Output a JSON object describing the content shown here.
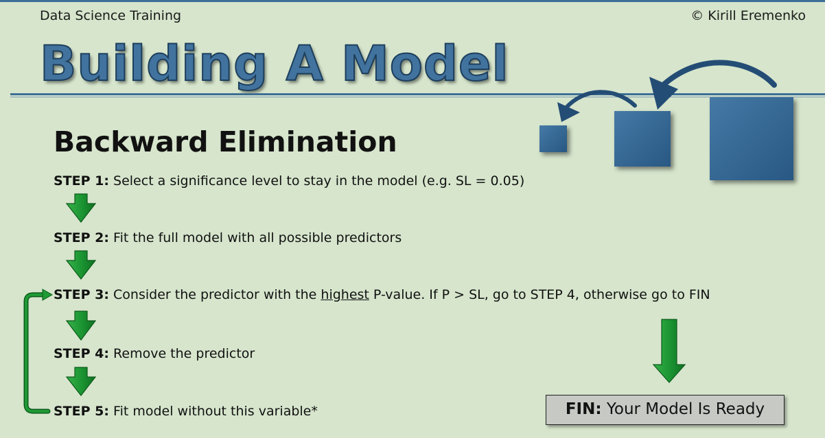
{
  "header": {
    "left_text": "Data Science Training",
    "right_text": "© Kirill Eremenko"
  },
  "title": "Building A Model",
  "section_title": "Backward Elimination",
  "steps": [
    {
      "label": "STEP 1:",
      "text": "Select a significance level to stay in the model (e.g. SL = 0.05)"
    },
    {
      "label": "STEP 2:",
      "text": "Fit the full model with all possible predictors"
    },
    {
      "label": "STEP 3:",
      "text_before": "Consider the predictor with the",
      "text_underlined": "highest",
      "text_after": "P-value. If P > SL, go to STEP 4, otherwise go to FIN"
    },
    {
      "label": "STEP 4:",
      "text": "Remove the predictor"
    },
    {
      "label": "STEP 5:",
      "text": "Fit model without this variable*"
    }
  ],
  "fin": {
    "label": "FIN:",
    "text": "Your Model Is Ready"
  },
  "colors": {
    "background": "#d6e5cc",
    "title_blue": "#41739e",
    "box_blue": "#2f618d",
    "arrow_green": "#1f9a35",
    "arrow_outline": "#0b5a1a"
  },
  "icons": {
    "down_arrow": "green-down-arrow-icon",
    "loop_arrow": "green-loop-back-arrow-icon",
    "curved_arrow": "blue-curved-arrow-icon"
  }
}
